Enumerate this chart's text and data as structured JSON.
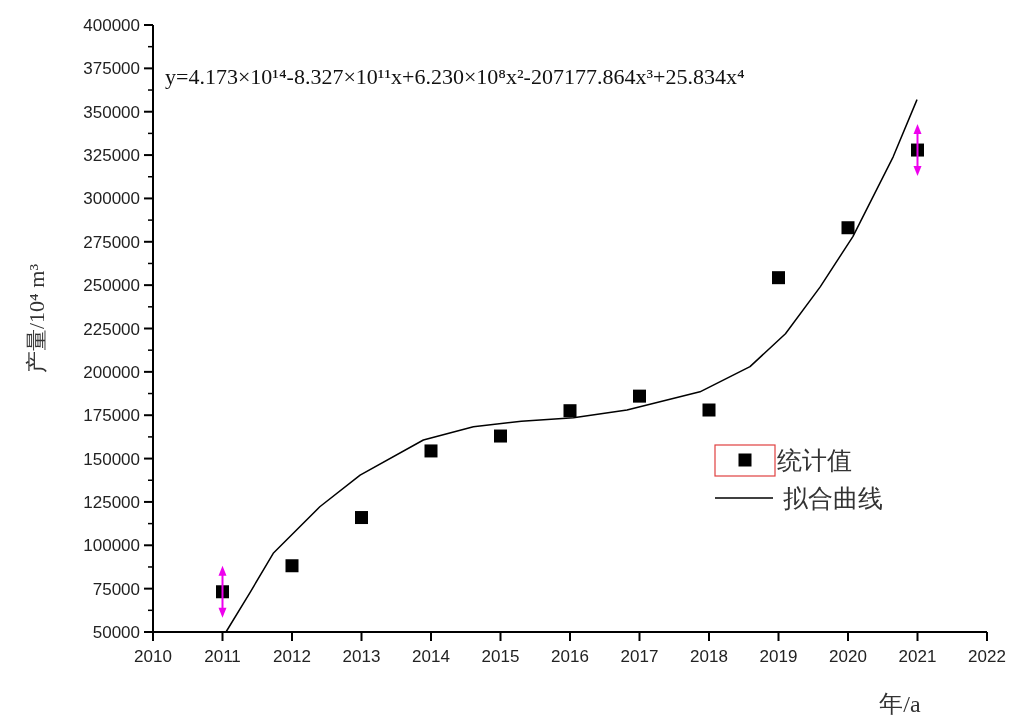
{
  "chart_data": {
    "type": "scatter",
    "xlabel": "年/a",
    "ylabel": "产量/10⁴ m³",
    "annotations": [
      "y=4.173×10¹⁴-8.327×10¹¹x+6.230×10⁸x²-207177.864x³+25.834x⁴"
    ],
    "xlim": [
      2010,
      2022
    ],
    "xticks": [
      2010,
      2011,
      2012,
      2013,
      2014,
      2015,
      2016,
      2017,
      2018,
      2019,
      2020,
      2021,
      2022
    ],
    "ylim": [
      50000,
      400000
    ],
    "yticks": [
      50000,
      75000,
      100000,
      125000,
      150000,
      175000,
      200000,
      225000,
      250000,
      275000,
      300000,
      325000,
      350000,
      375000,
      400000
    ],
    "grid": false,
    "legend": "right",
    "series": [
      {
        "name": "统计值",
        "type": "scatter",
        "marker": "square",
        "color": "#000000",
        "x": [
          2011,
          2012,
          2013,
          2014,
          2015,
          2016,
          2017,
          2018,
          2019,
          2020,
          2021
        ],
        "values": [
          73200,
          88200,
          116000,
          154400,
          163000,
          177600,
          186000,
          178000,
          254300,
          283100,
          327900
        ]
      },
      {
        "name": "拟合曲线",
        "type": "line",
        "line_style": "solid",
        "color": "#000000",
        "x": [
          2011.05,
          2011.4,
          2011.73,
          2012.4,
          2012.98,
          2013.89,
          2014.61,
          2015.3,
          2016.05,
          2016.82,
          2017.87,
          2018.59,
          2019.1,
          2019.6,
          2020.07,
          2020.65,
          2020.99
        ],
        "values": [
          50000,
          73000,
          95400,
          122200,
          140500,
          160700,
          168400,
          171500,
          173500,
          178000,
          188500,
          203000,
          222000,
          249000,
          278000,
          324000,
          356700
        ]
      }
    ]
  }
}
